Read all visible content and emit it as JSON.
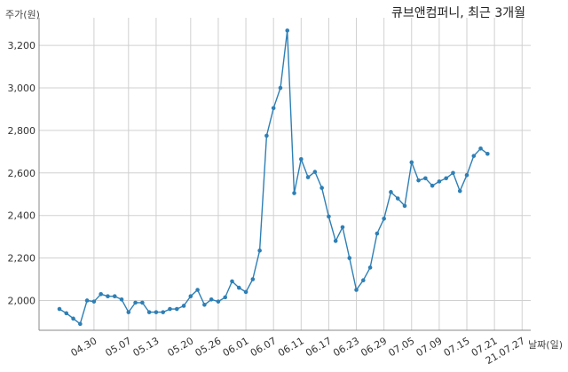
{
  "chart_data": {
    "type": "line",
    "title": "큐브앤컴퍼니, 최근 3개월",
    "ylabel": "주가(원)",
    "xlabel": "날짜(일)",
    "ylim": [
      1860,
      3330
    ],
    "yticks": [
      2000,
      2200,
      2400,
      2600,
      2800,
      3000,
      3200
    ],
    "ytick_labels": [
      "2,000",
      "2,200",
      "2,400",
      "2,600",
      "2,800",
      "3,000",
      "3,200"
    ],
    "xtick_labels": [
      {
        "label": "04.30",
        "index": 5
      },
      {
        "label": "05.07",
        "index": 10
      },
      {
        "label": "05.13",
        "index": 14
      },
      {
        "label": "05.20",
        "index": 19
      },
      {
        "label": "05.26",
        "index": 23
      },
      {
        "label": "06.01",
        "index": 27
      },
      {
        "label": "06.07",
        "index": 31
      },
      {
        "label": "06.11",
        "index": 35
      },
      {
        "label": "06.17",
        "index": 39
      },
      {
        "label": "06.23",
        "index": 43
      },
      {
        "label": "06.29",
        "index": 47
      },
      {
        "label": "07.05",
        "index": 51
      },
      {
        "label": "07.09",
        "index": 55
      },
      {
        "label": "07.15",
        "index": 59
      },
      {
        "label": "07.21",
        "index": 63
      },
      {
        "label": "21.07.27",
        "index": 67
      }
    ],
    "grid": true,
    "series": [
      {
        "color": "#2e7fb5",
        "values": [
          1960,
          1940,
          1915,
          1890,
          2000,
          1995,
          2030,
          2020,
          2020,
          2005,
          1945,
          1990,
          1990,
          1945,
          1945,
          1945,
          1960,
          1960,
          1975,
          2020,
          2050,
          1980,
          2005,
          1995,
          2015,
          2090,
          2060,
          2040,
          2100,
          2235,
          2775,
          2905,
          3000,
          3270,
          2505,
          2665,
          2580,
          2605,
          2530,
          2395,
          2280,
          2345,
          2200,
          2050,
          2095,
          2155,
          2315,
          2385,
          2510,
          2480,
          2445,
          2650,
          2565,
          2575,
          2540,
          2560,
          2575,
          2600,
          2515,
          2590,
          2680,
          2715,
          2690
        ]
      }
    ]
  }
}
